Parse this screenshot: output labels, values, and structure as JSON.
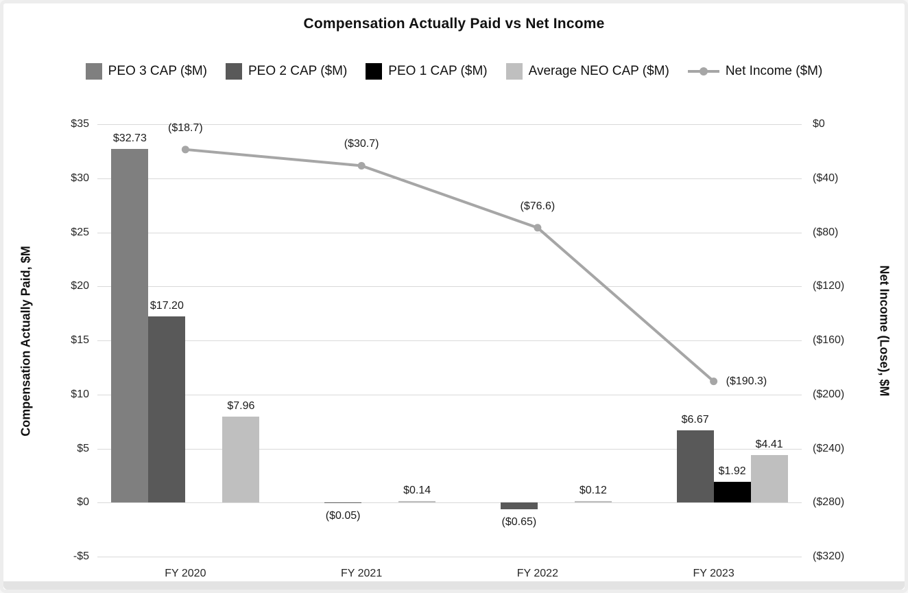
{
  "chart_data": {
    "type": "combo-bar-line",
    "title": "Compensation Actually Paid vs Net Income",
    "categories": [
      "FY 2020",
      "FY 2021",
      "FY 2022",
      "FY 2023"
    ],
    "left_axis": {
      "title": "Compensation Actually Paid, $M",
      "max": 35,
      "min": -5,
      "tick_step": 5,
      "tick_labels": [
        "$35",
        "$30",
        "$25",
        "$20",
        "$15",
        "$10",
        "$5",
        "$0",
        "-$5"
      ]
    },
    "right_axis": {
      "title": "Net Income (Lose), $M",
      "max": 0,
      "min": -320,
      "tick_step": 40,
      "tick_labels": [
        "$0",
        "($40)",
        "($80)",
        "($120)",
        "($160)",
        "($200)",
        "($240)",
        "($280)",
        "($320)"
      ]
    },
    "grid": true,
    "legend_position": "top",
    "series": [
      {
        "name": "PEO 3 CAP ($M)",
        "type": "bar",
        "color": "#7f7f7f",
        "values": [
          32.73,
          null,
          null,
          null
        ],
        "labels": [
          "$32.73",
          null,
          null,
          null
        ]
      },
      {
        "name": "PEO 2 CAP ($M)",
        "type": "bar",
        "color": "#595959",
        "values": [
          17.2,
          -0.05,
          -0.65,
          6.67
        ],
        "labels": [
          "$17.20",
          "($0.05)",
          "($0.65)",
          "$6.67"
        ]
      },
      {
        "name": "PEO 1 CAP ($M)",
        "type": "bar",
        "color": "#000000",
        "values": [
          null,
          null,
          null,
          1.92
        ],
        "labels": [
          null,
          null,
          null,
          "$1.92"
        ]
      },
      {
        "name": "Average NEO CAP ($M)",
        "type": "bar",
        "color": "#bfbfbf",
        "values": [
          7.96,
          0.14,
          0.12,
          4.41
        ],
        "labels": [
          "$7.96",
          "$0.14",
          "$0.12",
          "$4.41"
        ]
      },
      {
        "name": "Net Income ($M)",
        "type": "line",
        "color": "#a6a6a6",
        "values": [
          -18.7,
          -30.7,
          -76.6,
          -190.3
        ],
        "labels": [
          "($18.7)",
          "($30.7)",
          "($76.6)",
          "($190.3)"
        ],
        "label_positions": [
          "above",
          "above",
          "above",
          "right"
        ]
      }
    ]
  }
}
